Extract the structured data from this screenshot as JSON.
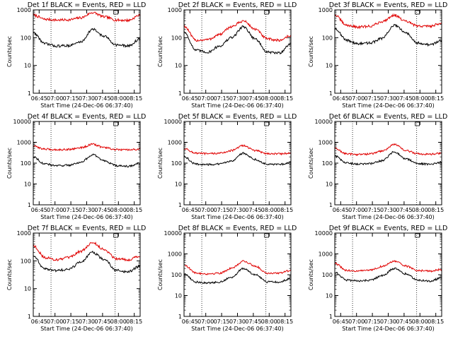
{
  "chart_data": [
    {
      "type": "line",
      "title": "Det 1f BLACK = Events, RED = LLD",
      "xlabel": "Start Time (24-Dec-06 06:37:40)",
      "ylabel": "Counts/sec",
      "y_scale": "log",
      "ylim": [
        1,
        1000
      ],
      "y_ticks": [
        "1",
        "10",
        "100",
        "1000"
      ],
      "x_ticks": [
        "06:45",
        "07:00",
        "07:15",
        "07:30",
        "07:45",
        "08:00",
        "08:15"
      ],
      "series": [
        {
          "color": "#e00000",
          "values": [
            650,
            460,
            430,
            440,
            520,
            800,
            560,
            430,
            420,
            650
          ]
        },
        {
          "color": "#000000",
          "values": [
            150,
            60,
            50,
            52,
            70,
            200,
            110,
            55,
            50,
            90
          ]
        }
      ]
    },
    {
      "type": "line",
      "title": "Det 2f BLACK = Events, RED = LLD",
      "xlabel": "Start Time (24-Dec-06 06:37:40)",
      "ylabel": "Counts/sec",
      "y_scale": "log",
      "ylim": [
        1,
        1000
      ],
      "y_ticks": [
        "1",
        "10",
        "100",
        "1000"
      ],
      "x_ticks": [
        "06:45",
        "07:00",
        "07:15",
        "07:30",
        "07:45",
        "08:00",
        "08:15"
      ],
      "series": [
        {
          "color": "#e00000",
          "values": [
            260,
            80,
            85,
            130,
            250,
            400,
            200,
            90,
            80,
            120
          ]
        },
        {
          "color": "#000000",
          "values": [
            160,
            35,
            30,
            50,
            100,
            250,
            90,
            30,
            28,
            60
          ]
        }
      ]
    },
    {
      "type": "line",
      "title": "Det 3f BLACK = Events, RED = LLD",
      "xlabel": "Start Time (24-Dec-06 06:37:40)",
      "ylabel": "Counts/sec",
      "y_scale": "log",
      "ylim": [
        1,
        1000
      ],
      "y_ticks": [
        "1",
        "10",
        "100",
        "1000"
      ],
      "x_ticks": [
        "06:45",
        "07:00",
        "07:15",
        "07:30",
        "07:45",
        "08:00",
        "08:15"
      ],
      "series": [
        {
          "color": "#e00000",
          "values": [
            650,
            280,
            240,
            260,
            380,
            650,
            380,
            260,
            260,
            330
          ]
        },
        {
          "color": "#000000",
          "values": [
            220,
            80,
            60,
            65,
            95,
            280,
            150,
            65,
            55,
            80
          ]
        }
      ]
    },
    {
      "type": "line",
      "title": "Det 4f BLACK = Events, RED = LLD",
      "xlabel": "Start Time (24-Dec-06 06:37:40)",
      "ylabel": "Counts/sec",
      "y_scale": "log",
      "ylim": [
        1,
        10000
      ],
      "y_ticks": [
        "1",
        "10",
        "100",
        "1000",
        "10000"
      ],
      "x_ticks": [
        "06:45",
        "07:00",
        "07:15",
        "07:30",
        "07:45",
        "08:00",
        "08:15"
      ],
      "series": [
        {
          "color": "#e00000",
          "values": [
            650,
            470,
            440,
            460,
            550,
            800,
            560,
            440,
            430,
            470
          ]
        },
        {
          "color": "#000000",
          "values": [
            200,
            90,
            75,
            80,
            110,
            250,
            130,
            75,
            70,
            100
          ]
        }
      ]
    },
    {
      "type": "line",
      "title": "Det 5f BLACK = Events, RED = LLD",
      "xlabel": "Start Time (24-Dec-06 06:37:40)",
      "ylabel": "Counts/sec",
      "y_scale": "log",
      "ylim": [
        1,
        10000
      ],
      "y_ticks": [
        "1",
        "10",
        "100",
        "1000",
        "10000"
      ],
      "x_ticks": [
        "06:45",
        "07:00",
        "07:15",
        "07:30",
        "07:45",
        "08:00",
        "08:15"
      ],
      "series": [
        {
          "color": "#e00000",
          "values": [
            500,
            300,
            280,
            300,
            400,
            700,
            400,
            290,
            280,
            300
          ]
        },
        {
          "color": "#000000",
          "values": [
            200,
            90,
            85,
            90,
            130,
            300,
            150,
            90,
            85,
            110
          ]
        }
      ]
    },
    {
      "type": "line",
      "title": "Det 6f BLACK = Events, RED = LLD",
      "xlabel": "Start Time (24-Dec-06 06:37:40)",
      "ylabel": "Counts/sec",
      "y_scale": "log",
      "ylim": [
        1,
        10000
      ],
      "y_ticks": [
        "1",
        "10",
        "100",
        "1000",
        "10000"
      ],
      "x_ticks": [
        "06:45",
        "07:00",
        "07:15",
        "07:30",
        "07:45",
        "08:00",
        "08:15"
      ],
      "series": [
        {
          "color": "#e00000",
          "values": [
            500,
            280,
            260,
            280,
            380,
            800,
            400,
            280,
            270,
            290
          ]
        },
        {
          "color": "#000000",
          "values": [
            220,
            100,
            90,
            95,
            130,
            350,
            160,
            95,
            90,
            110
          ]
        }
      ]
    },
    {
      "type": "line",
      "title": "Det 7f BLACK = Events, RED = LLD",
      "xlabel": "Start Time (24-Dec-06 06:37:40)",
      "ylabel": "Counts/sec",
      "y_scale": "log",
      "ylim": [
        1,
        1000
      ],
      "y_ticks": [
        "1",
        "10",
        "100",
        "1000"
      ],
      "x_ticks": [
        "06:45",
        "07:00",
        "07:15",
        "07:30",
        "07:45",
        "08:00",
        "08:15"
      ],
      "series": [
        {
          "color": "#e00000",
          "values": [
            350,
            130,
            110,
            130,
            220,
            450,
            250,
            120,
            110,
            150
          ]
        },
        {
          "color": "#000000",
          "values": [
            150,
            50,
            45,
            50,
            90,
            200,
            110,
            45,
            40,
            65
          ]
        }
      ]
    },
    {
      "type": "line",
      "title": "Det 8f BLACK = Events, RED = LLD",
      "xlabel": "Start Time (24-Dec-06 06:37:40)",
      "ylabel": "Counts/sec",
      "y_scale": "log",
      "ylim": [
        1,
        10000
      ],
      "y_ticks": [
        "1",
        "10",
        "100",
        "1000",
        "10000"
      ],
      "x_ticks": [
        "06:45",
        "07:00",
        "07:15",
        "07:30",
        "07:45",
        "08:00",
        "08:15"
      ],
      "series": [
        {
          "color": "#e00000",
          "values": [
            300,
            120,
            110,
            120,
            200,
            450,
            260,
            120,
            120,
            160
          ]
        },
        {
          "color": "#000000",
          "values": [
            110,
            45,
            40,
            45,
            75,
            200,
            100,
            45,
            45,
            65
          ]
        }
      ]
    },
    {
      "type": "line",
      "title": "Det 9f BLACK = Events, RED = LLD",
      "xlabel": "Start Time (24-Dec-06 06:37:40)",
      "ylabel": "Counts/sec",
      "y_scale": "log",
      "ylim": [
        1,
        10000
      ],
      "y_ticks": [
        "1",
        "10",
        "100",
        "1000",
        "10000"
      ],
      "x_ticks": [
        "06:45",
        "07:00",
        "07:15",
        "07:30",
        "07:45",
        "08:00",
        "08:15"
      ],
      "series": [
        {
          "color": "#e00000",
          "values": [
            350,
            160,
            150,
            170,
            250,
            450,
            260,
            160,
            150,
            180
          ]
        },
        {
          "color": "#000000",
          "values": [
            130,
            55,
            50,
            55,
            90,
            200,
            110,
            55,
            50,
            70
          ]
        }
      ]
    }
  ]
}
